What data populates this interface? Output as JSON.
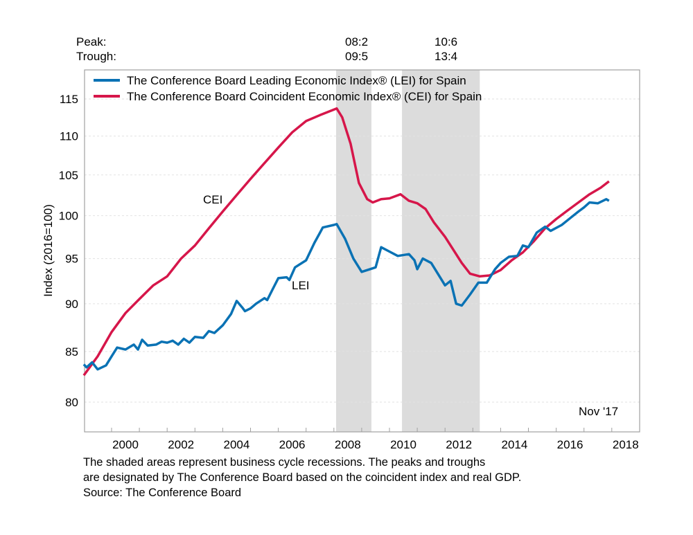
{
  "chart_data": {
    "type": "line",
    "ylabel": "Index (2016=100)",
    "yscale": "log",
    "ylim": [
      77.2,
      119.1
    ],
    "xlim": [
      1999.0,
      2018.55
    ],
    "yticks": [
      80,
      85,
      90,
      95,
      100,
      105,
      110,
      115
    ],
    "xticks": [
      "2000",
      "2002",
      "2004",
      "2006",
      "2008",
      "2010",
      "2012",
      "2014",
      "2016",
      "2018"
    ],
    "xtick_years": [
      2000,
      2002,
      2004,
      2006,
      2008,
      2010,
      2012,
      2014,
      2016,
      2018
    ],
    "grid": true,
    "legend_position": "top-left",
    "peak_label": "Peak:",
    "trough_label": "Trough:",
    "recessions": [
      {
        "peak": "08:2",
        "trough": "09:5",
        "start": 2008.08,
        "end": 2009.35
      },
      {
        "peak": "10:6",
        "trough": "13:4",
        "start": 2010.45,
        "end": 2013.25
      }
    ],
    "annotations": {
      "cei": "CEI",
      "lei": "LEI",
      "latest": "Nov '17"
    },
    "series": [
      {
        "name": "The Conference Board Leading Economic Index® (LEI) for Spain",
        "color": "#0a72b4",
        "x": [
          1999.0,
          1999.1,
          1999.3,
          1999.5,
          1999.8,
          2000.0,
          2000.2,
          2000.5,
          2000.8,
          2000.95,
          2001.1,
          2001.3,
          2001.6,
          2001.8,
          2002.0,
          2002.2,
          2002.4,
          2002.6,
          2002.8,
          2003.0,
          2003.3,
          2003.5,
          2003.7,
          2004.0,
          2004.3,
          2004.5,
          2004.7,
          2004.8,
          2005.0,
          2005.2,
          2005.5,
          2005.6,
          2005.8,
          2006.0,
          2006.3,
          2006.4,
          2006.6,
          2007.0,
          2007.3,
          2007.5,
          2007.6,
          2008.0,
          2008.1,
          2008.4,
          2008.7,
          2009.0,
          2009.3,
          2009.5,
          2009.7,
          2010.0,
          2010.3,
          2010.7,
          2010.9,
          2011.0,
          2011.2,
          2011.5,
          2011.8,
          2012.0,
          2012.2,
          2012.4,
          2012.6,
          2012.9,
          2013.2,
          2013.5,
          2013.8,
          2014.0,
          2014.3,
          2014.6,
          2014.8,
          2015.0,
          2015.3,
          2015.6,
          2015.8,
          2016.2,
          2016.5,
          2016.8,
          2017.0,
          2017.2,
          2017.5,
          2017.8,
          2017.9
        ],
        "values": [
          83.7,
          83.4,
          83.9,
          83.2,
          83.6,
          84.5,
          85.4,
          85.2,
          85.7,
          85.2,
          86.2,
          85.6,
          85.7,
          86.0,
          85.9,
          86.1,
          85.7,
          86.3,
          85.9,
          86.5,
          86.4,
          87.1,
          86.9,
          87.7,
          88.9,
          90.3,
          89.6,
          89.2,
          89.5,
          90.0,
          90.6,
          90.4,
          91.6,
          92.8,
          92.9,
          92.6,
          94.0,
          94.8,
          96.8,
          98.0,
          98.6,
          98.9,
          99.0,
          97.3,
          95.0,
          93.5,
          93.8,
          94.0,
          96.3,
          95.8,
          95.3,
          95.5,
          94.8,
          93.8,
          95.0,
          94.5,
          93.0,
          92.0,
          92.5,
          90.0,
          89.8,
          91.0,
          92.3,
          92.3,
          93.8,
          94.5,
          95.2,
          95.3,
          96.5,
          96.3,
          98.0,
          98.7,
          98.2,
          98.9,
          99.7,
          100.5,
          101.0,
          101.6,
          101.5,
          102.0,
          101.8
        ]
      },
      {
        "name": "The Conference Board Coincident Economic Index® (CEI) for Spain",
        "color": "#d6164a",
        "x": [
          1999.0,
          1999.5,
          2000.0,
          2000.5,
          2001.0,
          2001.5,
          2002.0,
          2002.5,
          2003.0,
          2003.5,
          2004.0,
          2004.5,
          2005.0,
          2005.5,
          2006.0,
          2006.5,
          2007.0,
          2007.5,
          2008.1,
          2008.3,
          2008.6,
          2008.9,
          2009.2,
          2009.4,
          2009.7,
          2010.0,
          2010.4,
          2010.7,
          2011.0,
          2011.3,
          2011.6,
          2012.0,
          2012.3,
          2012.6,
          2012.9,
          2013.25,
          2013.6,
          2014.0,
          2014.4,
          2014.8,
          2015.2,
          2015.6,
          2016.0,
          2016.4,
          2016.8,
          2017.2,
          2017.6,
          2017.9
        ],
        "values": [
          82.6,
          84.5,
          87.0,
          89.0,
          90.5,
          92.0,
          93.0,
          95.0,
          96.5,
          98.5,
          100.5,
          102.5,
          104.5,
          106.5,
          108.5,
          110.5,
          112.0,
          112.8,
          113.7,
          112.5,
          109.0,
          104.0,
          102.0,
          101.6,
          102.0,
          102.1,
          102.6,
          101.8,
          101.5,
          100.8,
          99.2,
          97.5,
          96.0,
          94.5,
          93.3,
          93.0,
          93.1,
          93.7,
          94.8,
          95.7,
          97.0,
          98.5,
          99.6,
          100.6,
          101.6,
          102.6,
          103.4,
          104.2
        ]
      }
    ]
  },
  "footer": {
    "line1": "The shaded areas represent business cycle recessions. The peaks and troughs",
    "line2": "are designated by The Conference Board based on the coincident index and real GDP.",
    "line3": "Source: The Conference Board"
  }
}
